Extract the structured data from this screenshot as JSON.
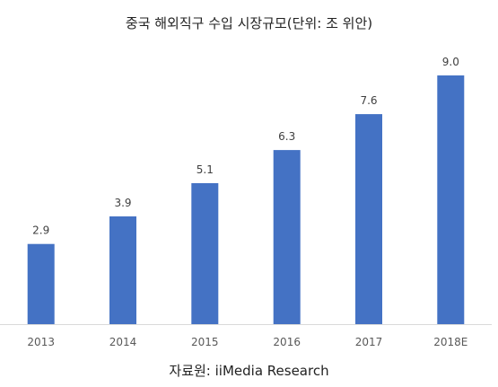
{
  "title": "중국 해외직구 수입 시장규모(단위: 조 위안)",
  "source": "자료원: iiMedia Research",
  "colors": {
    "bar": "#4472c4",
    "axis": "#d9d9d9",
    "label": "#404040",
    "tick": "#595959"
  },
  "chart_data": {
    "type": "bar",
    "categories": [
      "2013",
      "2014",
      "2015",
      "2016",
      "2017",
      "2018E"
    ],
    "values": [
      2.9,
      3.9,
      5.1,
      6.3,
      7.6,
      9.0
    ],
    "value_labels": [
      "2.9",
      "3.9",
      "5.1",
      "6.3",
      "7.6",
      "9.0"
    ],
    "title": "중국 해외직구 수입 시장규모(단위: 조 위안)",
    "xlabel": "",
    "ylabel": "",
    "ylim": [
      0,
      9.0
    ],
    "grid": false,
    "legend": "none"
  }
}
